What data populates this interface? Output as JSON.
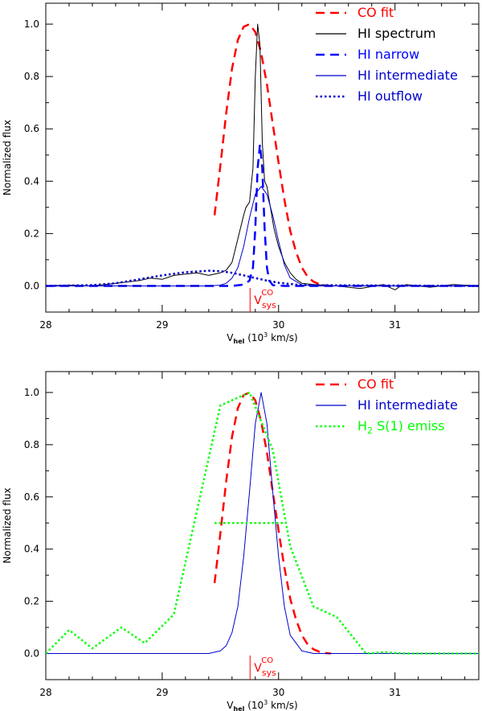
{
  "chart_data": [
    {
      "type": "line",
      "panel": "top",
      "xlabel": "V",
      "xlabel_sub": "hel",
      "xlabel_rest": " (10",
      "xlabel_sup": "3",
      "xlabel_end": " km/s)",
      "ylabel": "Normalized flux",
      "xlim": [
        28.0,
        31.72
      ],
      "ylim": [
        -0.1,
        1.08
      ],
      "x_ticks": [
        28,
        29,
        30,
        31
      ],
      "x_tick_labels": [
        "28",
        "29",
        "30",
        "31"
      ],
      "y_ticks": [
        0.0,
        0.2,
        0.4,
        0.6,
        0.8,
        1.0
      ],
      "y_tick_labels": [
        "0.0",
        "0.2",
        "0.4",
        "0.6",
        "0.8",
        "1.0"
      ],
      "vsys": 29.755,
      "vsys_label": "V",
      "vsys_sub": "sys",
      "vsys_sup": "CO",
      "legend": [
        {
          "label": "CO fit",
          "color": "#ff0000",
          "style": "dashed"
        },
        {
          "label": "HI spectrum",
          "color": "#000000",
          "style": "solid"
        },
        {
          "label": "HI narrow",
          "color": "#0000ff",
          "style": "dashed"
        },
        {
          "label": "HI intermediate",
          "color": "#0000cc",
          "style": "solid"
        },
        {
          "label": "HI outflow",
          "color": "#0000cc",
          "style": "dotted"
        }
      ],
      "series": [
        {
          "name": "CO fit",
          "color": "#ff0000",
          "style": "dashed",
          "x": [
            29.45,
            29.5,
            29.55,
            29.6,
            29.65,
            29.7,
            29.75,
            29.8,
            29.85,
            29.9,
            29.95,
            30.0,
            30.05,
            30.1,
            30.15,
            30.2,
            30.25,
            30.3,
            30.35,
            30.4,
            30.45
          ],
          "y": [
            0.27,
            0.46,
            0.66,
            0.83,
            0.94,
            0.99,
            1.0,
            0.97,
            0.89,
            0.77,
            0.62,
            0.47,
            0.33,
            0.21,
            0.13,
            0.07,
            0.035,
            0.016,
            0.007,
            0.002,
            0.0
          ]
        },
        {
          "name": "HI spectrum",
          "color": "#000000",
          "style": "solid",
          "x": [
            28.0,
            28.2,
            28.4,
            28.6,
            28.7,
            28.8,
            28.9,
            29.0,
            29.1,
            29.2,
            29.3,
            29.4,
            29.5,
            29.55,
            29.6,
            29.65,
            29.7,
            29.72,
            29.75,
            29.78,
            29.8,
            29.82,
            29.84,
            29.86,
            29.88,
            29.9,
            29.93,
            29.96,
            30.0,
            30.05,
            30.1,
            30.15,
            30.2,
            30.3,
            30.5,
            30.7,
            30.9,
            31.0,
            31.05,
            31.1,
            31.3,
            31.5,
            31.72
          ],
          "y": [
            0.0,
            0.003,
            0.0,
            0.01,
            0.015,
            0.02,
            0.03,
            0.025,
            0.04,
            0.045,
            0.05,
            0.04,
            0.05,
            0.06,
            0.09,
            0.18,
            0.27,
            0.3,
            0.32,
            0.45,
            0.8,
            1.0,
            0.92,
            0.55,
            0.4,
            0.38,
            0.3,
            0.22,
            0.15,
            0.09,
            0.05,
            0.025,
            0.01,
            0.005,
            0.0,
            -0.01,
            0.005,
            -0.015,
            0.0,
            0.005,
            -0.005,
            0.005,
            0.0
          ]
        },
        {
          "name": "HI narrow",
          "color": "#0000ff",
          "style": "dashed",
          "x": [
            28.0,
            29.0,
            29.6,
            29.7,
            29.75,
            29.78,
            29.8,
            29.82,
            29.84,
            29.86,
            29.88,
            29.9,
            29.92,
            29.95,
            30.05,
            31.72
          ],
          "y": [
            0.0,
            0.0,
            0.0,
            0.005,
            0.02,
            0.07,
            0.22,
            0.45,
            0.54,
            0.45,
            0.22,
            0.07,
            0.02,
            0.003,
            0.0,
            0.0
          ]
        },
        {
          "name": "HI intermediate",
          "color": "#0000cc",
          "style": "solid",
          "x": [
            28.0,
            29.4,
            29.5,
            29.55,
            29.6,
            29.65,
            29.7,
            29.75,
            29.8,
            29.85,
            29.9,
            29.95,
            30.0,
            30.05,
            30.1,
            30.2,
            30.3,
            31.72
          ],
          "y": [
            0.0,
            0.0,
            0.003,
            0.01,
            0.03,
            0.07,
            0.15,
            0.26,
            0.35,
            0.38,
            0.35,
            0.27,
            0.17,
            0.08,
            0.03,
            0.004,
            0.0,
            0.0
          ]
        },
        {
          "name": "HI outflow",
          "color": "#0000cc",
          "style": "dotted",
          "x": [
            28.0,
            28.4,
            28.6,
            28.8,
            29.0,
            29.2,
            29.4,
            29.5,
            29.6,
            29.7,
            29.8,
            29.9,
            30.0,
            30.2,
            31.72
          ],
          "y": [
            0.0,
            0.003,
            0.01,
            0.025,
            0.04,
            0.052,
            0.058,
            0.056,
            0.05,
            0.04,
            0.03,
            0.02,
            0.012,
            0.003,
            0.0
          ]
        }
      ]
    },
    {
      "type": "line",
      "panel": "bottom",
      "xlabel": "V",
      "xlabel_sub": "hel",
      "xlabel_rest": " (10",
      "xlabel_sup": "3",
      "xlabel_end": " km/s)",
      "ylabel": "Normalized flux",
      "xlim": [
        28.0,
        31.72
      ],
      "ylim": [
        -0.1,
        1.08
      ],
      "x_ticks": [
        28,
        29,
        30,
        31
      ],
      "x_tick_labels": [
        "28",
        "29",
        "30",
        "31"
      ],
      "y_ticks": [
        0.0,
        0.2,
        0.4,
        0.6,
        0.8,
        1.0
      ],
      "y_tick_labels": [
        "0.0",
        "0.2",
        "0.4",
        "0.6",
        "0.8",
        "1.0"
      ],
      "vsys": 29.755,
      "vsys_label": "V",
      "vsys_sub": "sys",
      "vsys_sup": "CO",
      "legend": [
        {
          "label": "CO fit",
          "color": "#ff0000",
          "style": "dashed"
        },
        {
          "label": "HI intermediate",
          "color": "#0000cc",
          "style": "solid"
        },
        {
          "label": "H",
          "label_sub": "2",
          "label_rest": " S(1) emiss",
          "color": "#00ff00",
          "style": "dotted"
        }
      ],
      "series": [
        {
          "name": "CO fit",
          "color": "#ff0000",
          "style": "dashed",
          "x": [
            29.45,
            29.5,
            29.55,
            29.6,
            29.65,
            29.7,
            29.75,
            29.8,
            29.85,
            29.9,
            29.95,
            30.0,
            30.05,
            30.1,
            30.15,
            30.2,
            30.25,
            30.3,
            30.35,
            30.4,
            30.45
          ],
          "y": [
            0.27,
            0.46,
            0.66,
            0.83,
            0.94,
            0.99,
            1.0,
            0.97,
            0.89,
            0.77,
            0.62,
            0.47,
            0.33,
            0.21,
            0.13,
            0.07,
            0.035,
            0.016,
            0.007,
            0.002,
            0.0
          ]
        },
        {
          "name": "HI intermediate",
          "color": "#0000cc",
          "style": "solid",
          "x": [
            28.0,
            29.4,
            29.5,
            29.55,
            29.6,
            29.65,
            29.7,
            29.75,
            29.8,
            29.85,
            29.9,
            29.95,
            30.0,
            30.05,
            30.1,
            30.2,
            30.3,
            31.72
          ],
          "y": [
            0.0,
            0.0,
            0.01,
            0.03,
            0.08,
            0.18,
            0.37,
            0.62,
            0.88,
            1.0,
            0.88,
            0.62,
            0.37,
            0.18,
            0.07,
            0.01,
            0.0,
            0.0
          ]
        },
        {
          "name": "H2 S(1) emiss",
          "color": "#00ff00",
          "style": "dotted",
          "x": [
            28.0,
            28.2,
            28.4,
            28.65,
            28.85,
            29.1,
            29.3,
            29.5,
            29.75,
            29.95,
            30.1,
            30.3,
            30.5,
            30.75,
            30.9,
            31.1,
            31.3,
            31.72
          ],
          "y": [
            0.0,
            0.09,
            0.02,
            0.1,
            0.04,
            0.15,
            0.55,
            0.95,
            1.0,
            0.78,
            0.41,
            0.18,
            0.14,
            0.0,
            0.005,
            0.0,
            0.0,
            0.0
          ]
        },
        {
          "name": "H2 FWHM",
          "color": "#00ff00",
          "style": "dotted",
          "x": [
            29.45,
            30.05
          ],
          "y": [
            0.5,
            0.5
          ]
        }
      ]
    }
  ]
}
